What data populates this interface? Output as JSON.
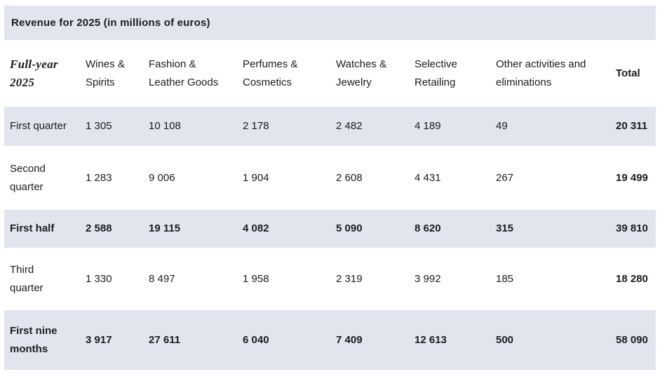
{
  "colors": {
    "row_shade": "#e2e5ed",
    "text": "#1c1c1e",
    "background": "#ffffff"
  },
  "chart_data": {
    "type": "table",
    "title": "Revenue for 2025 (in millions of euros)",
    "corner_header": "Full-year 2025",
    "columns": [
      "Wines & Spirits",
      "Fashion & Leather Goods",
      "Perfumes & Cosmetics",
      "Watches & Jewelry",
      "Selective Retailing",
      "Other activities and eliminations",
      "Total"
    ],
    "rows": [
      {
        "label": "First quarter",
        "emphasis": false,
        "values": [
          "1 305",
          "10 108",
          "2 178",
          "2 482",
          "4 189",
          "49",
          "20 311"
        ]
      },
      {
        "label": "Second quarter",
        "emphasis": false,
        "values": [
          "1 283",
          "9 006",
          "1 904",
          "2 608",
          "4 431",
          "267",
          "19 499"
        ]
      },
      {
        "label": "First half",
        "emphasis": true,
        "values": [
          "2 588",
          "19 115",
          "4 082",
          "5 090",
          "8 620",
          "315",
          "39 810"
        ]
      },
      {
        "label": "Third quarter",
        "emphasis": false,
        "values": [
          "1 330",
          "8 497",
          "1 958",
          "2 319",
          "3 992",
          "185",
          "18 280"
        ]
      },
      {
        "label": "First nine months",
        "emphasis": true,
        "values": [
          "3 917",
          "27 611",
          "6 040",
          "7 409",
          "12 613",
          "500",
          "58 090"
        ]
      }
    ]
  }
}
